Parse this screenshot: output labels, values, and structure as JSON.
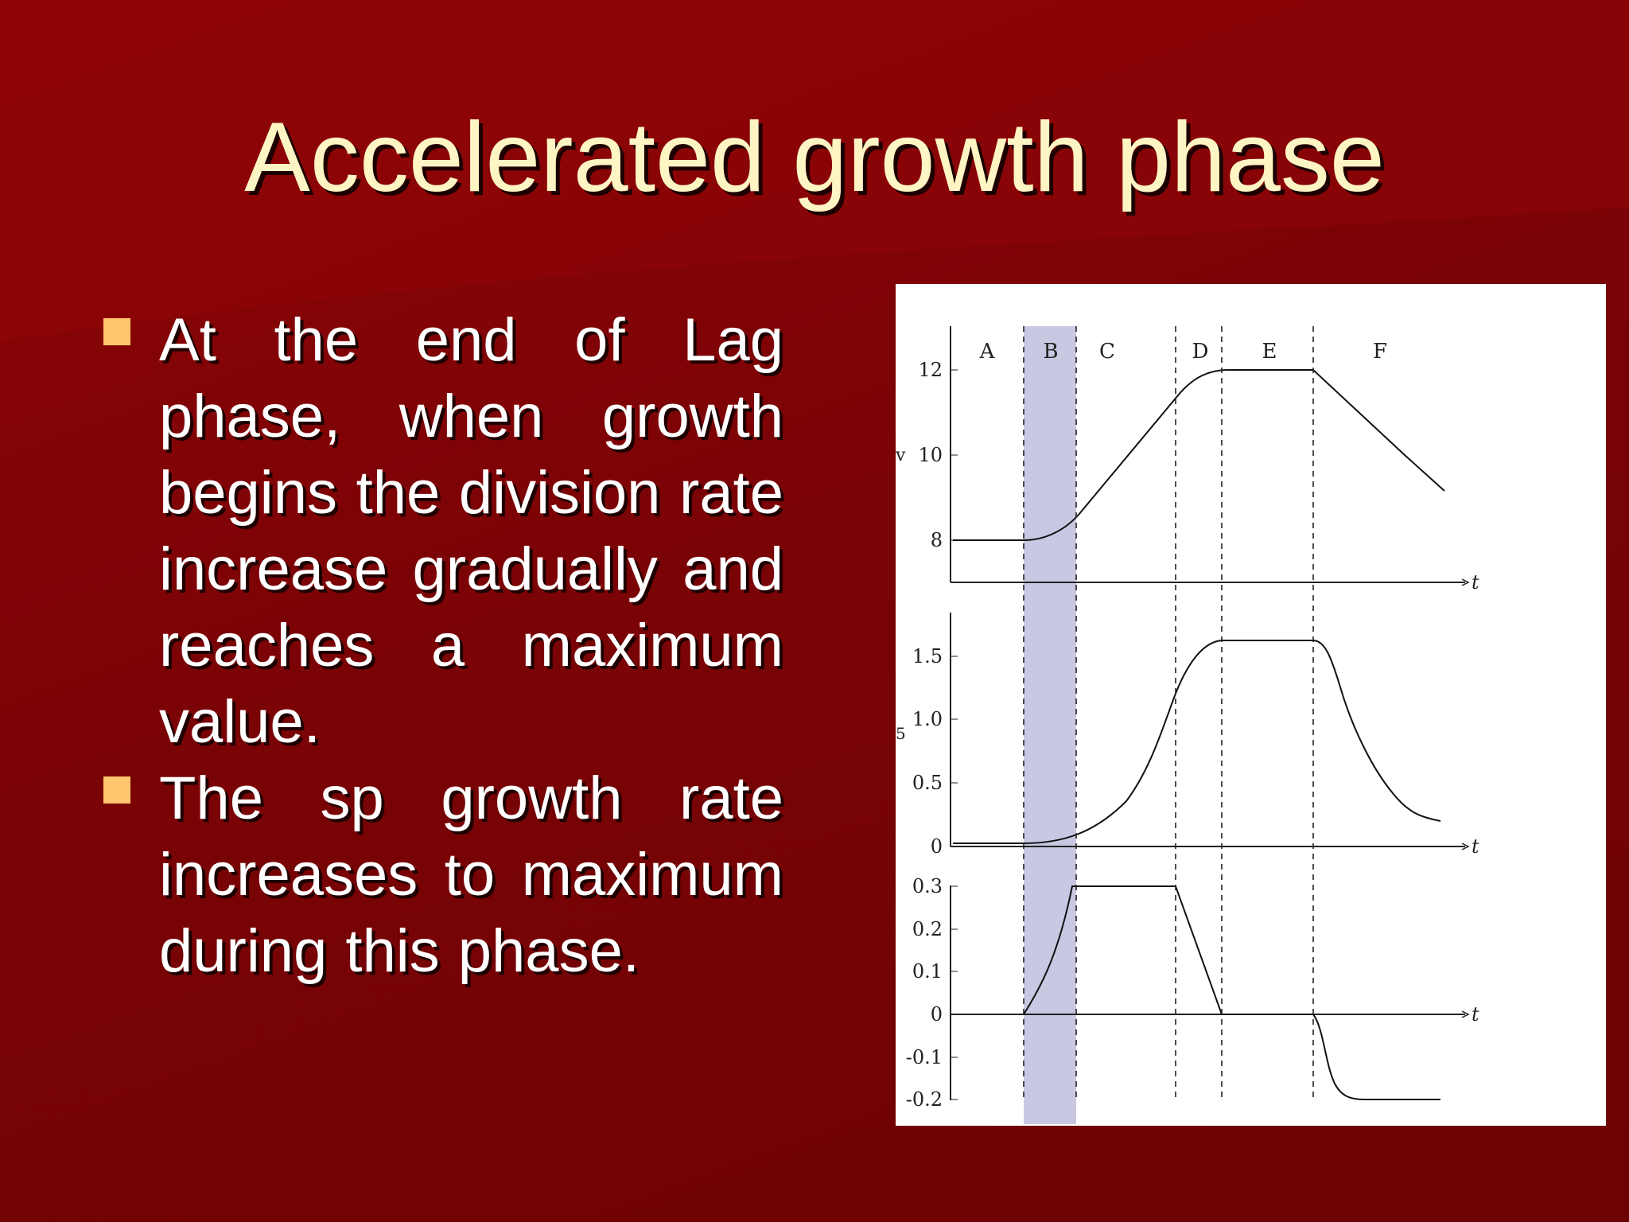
{
  "slide": {
    "title": "Accelerated growth phase",
    "bullets": [
      {
        "text": "At the end of Lag phase, when growth begins the division rate increase gradually and reaches a maximum value."
      },
      {
        "text": "The sp growth rate increases to maximum during this phase."
      }
    ]
  },
  "colors": {
    "background": "#7a0305",
    "title": "#fdf5c4",
    "bullet_marker": "#ffc66e",
    "body_text": "#ffffff",
    "highlight_band": "#c8c8e2"
  },
  "figure": {
    "phase_labels": [
      "A",
      "B",
      "C",
      "D",
      "E",
      "F"
    ],
    "highlighted_phase": "B",
    "t_label": "t",
    "panel1": {
      "ticks": [
        "12",
        "10",
        "8"
      ],
      "ylabel_fragment": "v"
    },
    "panel2": {
      "ticks": [
        "1.5",
        "1.0",
        "0.5",
        "0"
      ],
      "ylabel_fragment": "5"
    },
    "panel3": {
      "ticks": [
        "0.3",
        "0.2",
        "0.1",
        "0",
        "-0.1",
        "-0.2"
      ]
    }
  }
}
